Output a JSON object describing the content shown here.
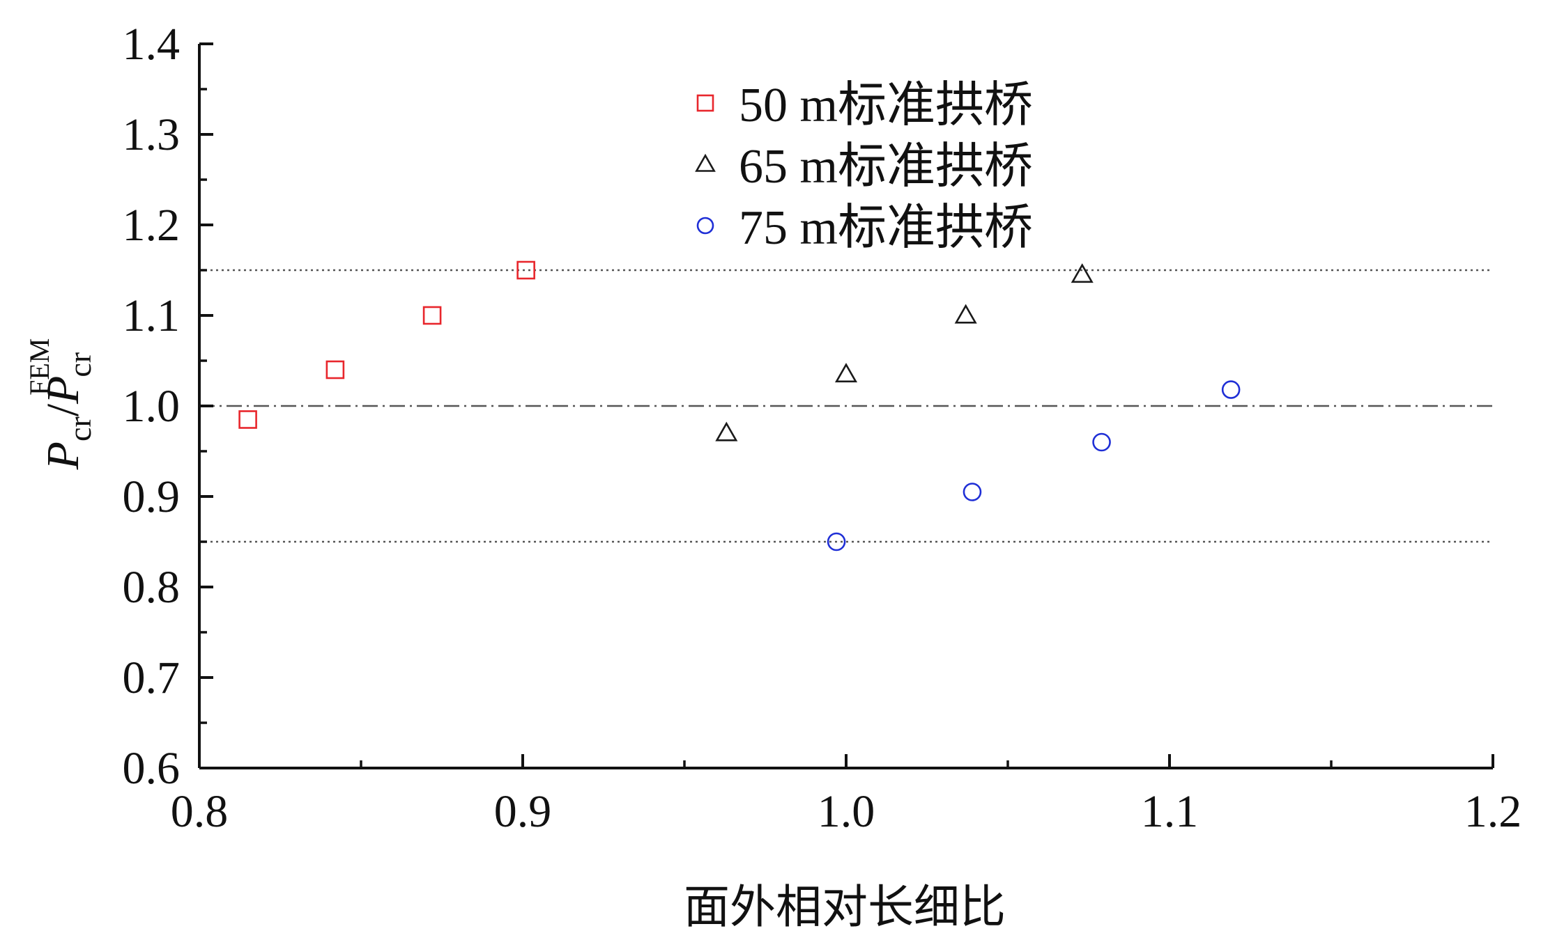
{
  "chart_data": {
    "type": "scatter",
    "xlabel": "面外相对长细比",
    "ylabel": {
      "main": "P",
      "sub": "cr",
      "slash": "/",
      "sup": "FEM"
    },
    "xlim": [
      0.8,
      1.2
    ],
    "ylim": [
      0.6,
      1.4
    ],
    "xticks": [
      "0.8",
      "0.9",
      "1.0",
      "1.1",
      "1.2"
    ],
    "yticks": [
      "0.6",
      "0.7",
      "0.8",
      "0.9",
      "1.0",
      "1.1",
      "1.2",
      "1.3",
      "1.4"
    ],
    "legend_position": "top-center",
    "reference_lines": [
      {
        "y": 1.15,
        "style": "dotted"
      },
      {
        "y": 1.0,
        "style": "dash-dot"
      },
      {
        "y": 0.85,
        "style": "dotted"
      }
    ],
    "series": [
      {
        "name": "50 m标准拱桥",
        "marker": "square",
        "color": "#e8262c",
        "points": [
          [
            0.815,
            0.985
          ],
          [
            0.842,
            1.04
          ],
          [
            0.872,
            1.1
          ],
          [
            0.901,
            1.15
          ]
        ]
      },
      {
        "name": "65 m标准拱桥",
        "marker": "triangle",
        "color": "#1a1a1a",
        "points": [
          [
            0.963,
            0.97
          ],
          [
            1.0,
            1.035
          ],
          [
            1.037,
            1.1
          ],
          [
            1.073,
            1.145
          ]
        ]
      },
      {
        "name": "75 m标准拱桥",
        "marker": "circle",
        "color": "#1f2fd6",
        "points": [
          [
            0.997,
            0.85
          ],
          [
            1.039,
            0.905
          ],
          [
            1.079,
            0.96
          ],
          [
            1.119,
            1.018
          ]
        ]
      }
    ]
  }
}
